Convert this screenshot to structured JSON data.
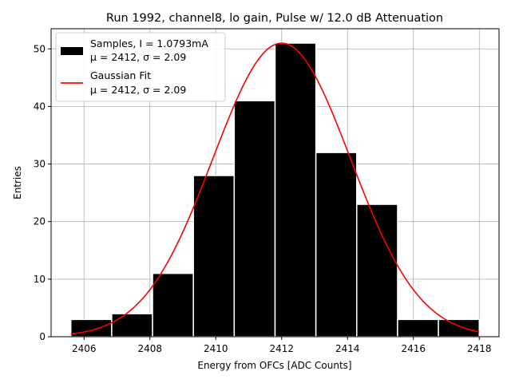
{
  "chart_data": {
    "type": "bar",
    "title": "Run 1992, channel8, lo gain, Pulse w/ 12.0 dB Attenuation",
    "xlabel": "Energy from OFCs [ADC Counts]",
    "ylabel": "Entries",
    "xlim": [
      2405.0,
      2418.6
    ],
    "ylim": [
      0,
      53.5
    ],
    "xticks": [
      2406,
      2408,
      2410,
      2412,
      2414,
      2416,
      2418
    ],
    "yticks": [
      0,
      10,
      20,
      30,
      40,
      50
    ],
    "grid": true,
    "legend_placement": "top-left",
    "bins": [
      {
        "x0": 2405.6,
        "x1": 2406.84,
        "value": 3
      },
      {
        "x0": 2406.84,
        "x1": 2408.08,
        "value": 4
      },
      {
        "x0": 2408.08,
        "x1": 2409.32,
        "value": 11
      },
      {
        "x0": 2409.32,
        "x1": 2410.56,
        "value": 28
      },
      {
        "x0": 2410.56,
        "x1": 2411.8,
        "value": 41
      },
      {
        "x0": 2411.8,
        "x1": 2413.04,
        "value": 51
      },
      {
        "x0": 2413.04,
        "x1": 2414.28,
        "value": 32
      },
      {
        "x0": 2414.28,
        "x1": 2415.52,
        "value": 23
      },
      {
        "x0": 2415.52,
        "x1": 2416.76,
        "value": 3
      },
      {
        "x0": 2416.76,
        "x1": 2418.0,
        "value": 3
      }
    ],
    "fit": {
      "type": "gaussian",
      "amplitude": 51,
      "mu": 2412.0,
      "sigma": 2.09,
      "x_range": [
        2405.6,
        2418.0
      ]
    },
    "series": [
      {
        "name": "Samples, I = 1.0793mA",
        "stats": "μ = 2412, σ = 2.09",
        "color": "#000000"
      },
      {
        "name": "Gaussian Fit",
        "stats": "μ = 2412, σ = 2.09",
        "color": "#ff0000"
      }
    ]
  }
}
